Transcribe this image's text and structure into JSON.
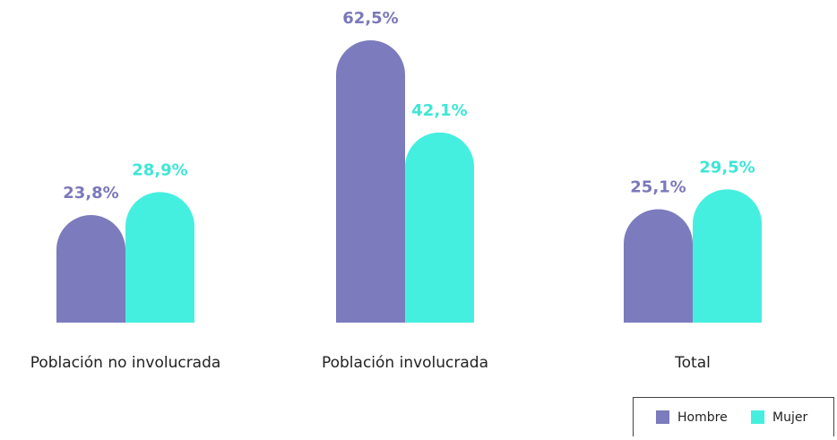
{
  "chart_data": {
    "type": "bar",
    "categories": [
      "Población no involucrada",
      "Población involucrada",
      "Total"
    ],
    "series": [
      {
        "name": "Hombre",
        "color": "#7b7bbd",
        "values": [
          23.8,
          62.5,
          25.1
        ],
        "value_labels": [
          "23,8%",
          "62,5%",
          "25,1%"
        ]
      },
      {
        "name": "Mujer",
        "color": "#45efdf",
        "values": [
          28.9,
          42.1,
          29.5
        ],
        "value_labels": [
          "28,9%",
          "42,1%",
          "29,5%"
        ]
      }
    ],
    "legend": "bottom-right"
  }
}
